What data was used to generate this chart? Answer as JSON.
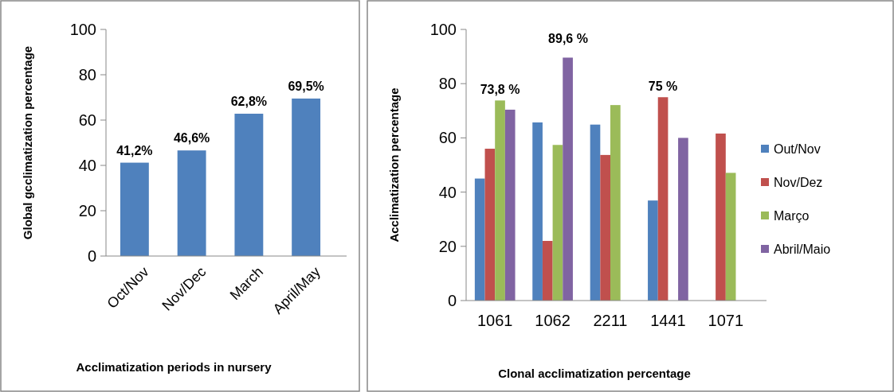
{
  "chart_data": [
    {
      "type": "bar",
      "xlabel": "Acclimatization  periods in nursery",
      "ylabel": "Global gcclimatization percentage",
      "categories": [
        "Oct/Nov",
        "Nov/Dec",
        "March",
        "April/May"
      ],
      "series": [
        {
          "color": "#4f81bd",
          "values": [
            41.2,
            46.6,
            62.8,
            69.5
          ],
          "value_labels": [
            "41,2%",
            "46,6%",
            "62,8%",
            "69,5%"
          ]
        }
      ],
      "ylim": [
        0,
        100
      ],
      "yticks": [
        0,
        20,
        40,
        60,
        80,
        100
      ],
      "grid": false,
      "legend": false
    },
    {
      "type": "bar",
      "xlabel": "Clonal acclimatization percentage",
      "ylabel": "Acclimatization percentage",
      "categories": [
        "1061",
        "1062",
        "2211",
        "1441",
        "1071"
      ],
      "series": [
        {
          "name": "Out/Nov",
          "color": "#4f81bd",
          "values": [
            45.0,
            65.7,
            64.9,
            36.9,
            null
          ]
        },
        {
          "name": "Nov/Dez",
          "color": "#c0504d",
          "values": [
            56,
            22,
            53.7,
            75,
            61.6
          ]
        },
        {
          "name": "Março",
          "color": "#9bbb59",
          "values": [
            73.8,
            57.4,
            72.1,
            null,
            47.1
          ]
        },
        {
          "name": "Abril/Maio",
          "color": "#8064a2",
          "values": [
            70.4,
            89.6,
            null,
            60,
            null
          ]
        }
      ],
      "annotations": [
        {
          "text": "73,8 %",
          "x": "1061",
          "y": 73.8
        },
        "89,6 %",
        {
          "text": "75 %",
          "x": "1441",
          "y": 75
        }
      ],
      "ylim": [
        0,
        100
      ],
      "yticks": [
        0,
        20,
        40,
        60,
        80,
        100
      ],
      "grid": false,
      "legend": "right"
    }
  ]
}
